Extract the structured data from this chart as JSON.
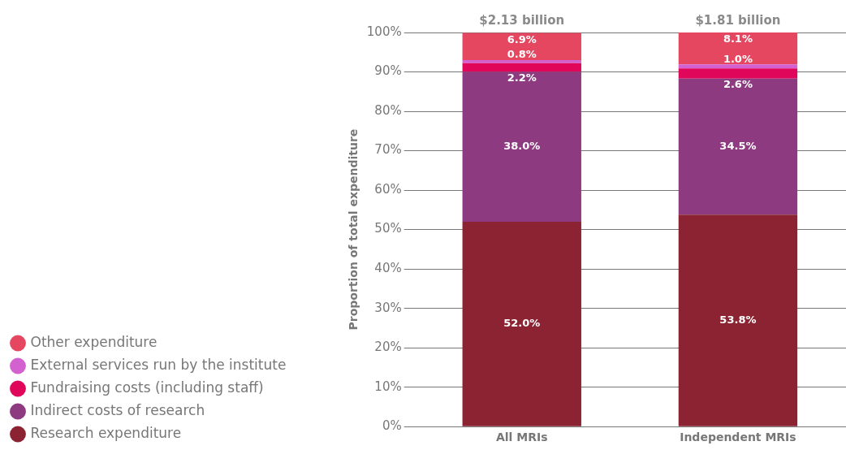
{
  "chart_data": {
    "type": "bar",
    "stacked": true,
    "ylabel": "Proportion of total expenditure",
    "categories": [
      "All MRIs",
      "Independent MRIs"
    ],
    "series": [
      {
        "name": "Research expenditure",
        "color": "#8b2332",
        "values": [
          52.0,
          53.8
        ],
        "value_labels": [
          "52.0%",
          "53.8%"
        ]
      },
      {
        "name": "Indirect costs of research",
        "color": "#8e3a80",
        "values": [
          38.0,
          34.5
        ],
        "value_labels": [
          "38.0%",
          "34.5%"
        ]
      },
      {
        "name": "Fundraising costs (including staff)",
        "color": "#e0065a",
        "values": [
          2.2,
          2.6
        ],
        "value_labels": [
          "2.2%",
          "2.6%"
        ]
      },
      {
        "name": "External services run by the institute",
        "color": "#d361cf",
        "values": [
          0.8,
          1.0
        ],
        "value_labels": [
          "0.8%",
          "1.0%"
        ]
      },
      {
        "name": "Other expenditure",
        "color": "#e54660",
        "values": [
          6.9,
          8.1
        ],
        "value_labels": [
          "6.9%",
          "8.1%"
        ]
      }
    ],
    "annotations": [
      {
        "text": "$2.13 billion",
        "x": "All MRIs",
        "y": 100
      },
      {
        "text": "$1.81 billion",
        "x": "Independent MRIs",
        "y": 100
      }
    ],
    "ylim": [
      0,
      100
    ],
    "yticks": [
      {
        "value": 0,
        "label": "0%"
      },
      {
        "value": 10,
        "label": "10%"
      },
      {
        "value": 20,
        "label": "20%"
      },
      {
        "value": 30,
        "label": "30%"
      },
      {
        "value": 40,
        "label": "40%"
      },
      {
        "value": 50,
        "label": "50%"
      },
      {
        "value": 60,
        "label": "60%"
      },
      {
        "value": 70,
        "label": "70%"
      },
      {
        "value": 80,
        "label": "80%"
      },
      {
        "value": 90,
        "label": "90%"
      },
      {
        "value": 100,
        "label": "100%"
      }
    ],
    "grid": "y",
    "legend": "bottom left"
  }
}
